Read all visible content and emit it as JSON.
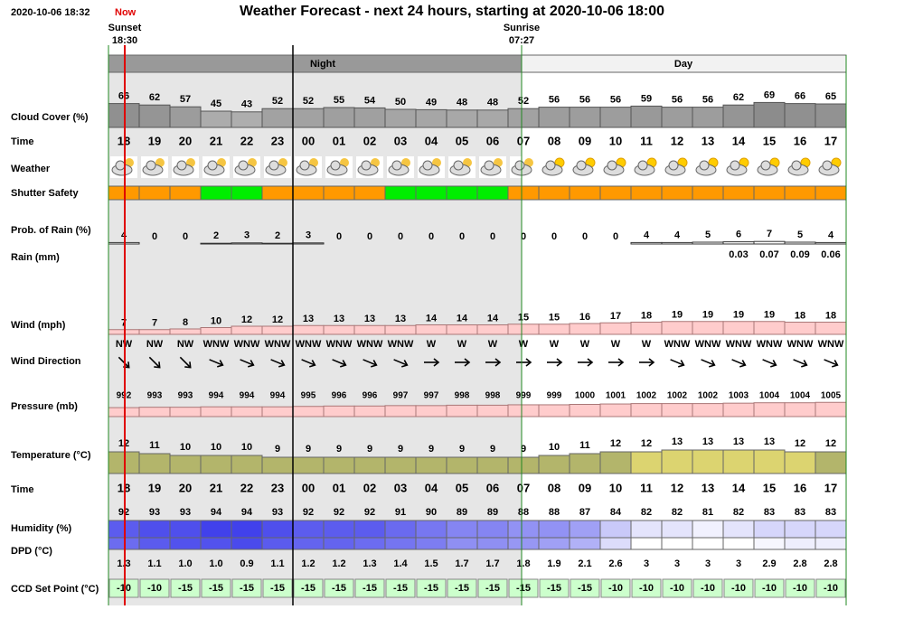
{
  "header": {
    "timestamp": "2020-10-06 18:32",
    "now": "Now",
    "title": "Weather Forecast - next 24 hours, starting at 2020-10-06 18:00",
    "sunset": {
      "label": "Sunset",
      "time": "18:30"
    },
    "sunrise": {
      "label": "Sunrise",
      "time": "07:27"
    }
  },
  "periods": {
    "night": "Night",
    "day": "Day"
  },
  "hours": [
    "18",
    "19",
    "20",
    "21",
    "22",
    "23",
    "00",
    "01",
    "02",
    "03",
    "04",
    "05",
    "06",
    "07",
    "08",
    "09",
    "10",
    "11",
    "12",
    "13",
    "14",
    "15",
    "16",
    "17"
  ],
  "rows": {
    "cloud_cover": {
      "label": "Cloud Cover (%)",
      "values": [
        66,
        62,
        57,
        45,
        43,
        52,
        52,
        55,
        54,
        50,
        49,
        48,
        48,
        52,
        56,
        56,
        56,
        59,
        56,
        56,
        62,
        69,
        66,
        65
      ]
    },
    "time": {
      "label": "Time"
    },
    "weather": {
      "label": "Weather"
    },
    "shutter_safety": {
      "label": "Shutter Safety",
      "colors": [
        "#ff9900",
        "#ff9900",
        "#ff9900",
        "#00ee00",
        "#00ee00",
        "#ff9900",
        "#ff9900",
        "#ff9900",
        "#ff9900",
        "#00ee00",
        "#00ee00",
        "#00ee00",
        "#00ee00",
        "#ff9900",
        "#ff9900",
        "#ff9900",
        "#ff9900",
        "#ff9900",
        "#ff9900",
        "#ff9900",
        "#ff9900",
        "#ff9900",
        "#ff9900",
        "#ff9900"
      ]
    },
    "prob_rain": {
      "label": "Prob. of Rain (%)",
      "values": [
        4,
        0,
        0,
        2,
        3,
        2,
        3,
        0,
        0,
        0,
        0,
        0,
        0,
        0,
        0,
        0,
        0,
        4,
        4,
        5,
        6,
        7,
        5,
        4
      ]
    },
    "rain": {
      "label": "Rain (mm)",
      "values": [
        null,
        null,
        null,
        null,
        null,
        null,
        null,
        null,
        null,
        null,
        null,
        null,
        null,
        null,
        null,
        null,
        null,
        null,
        null,
        null,
        0.03,
        0.07,
        0.09,
        0.06
      ]
    },
    "wind": {
      "label": "Wind (mph)",
      "values": [
        7,
        7,
        8,
        10,
        12,
        12,
        13,
        13,
        13,
        13,
        14,
        14,
        14,
        15,
        15,
        16,
        17,
        18,
        19,
        19,
        19,
        19,
        18,
        18
      ]
    },
    "wind_direction": {
      "label": "Wind Direction",
      "values": [
        "NW",
        "NW",
        "NW",
        "WNW",
        "WNW",
        "WNW",
        "WNW",
        "WNW",
        "WNW",
        "WNW",
        "W",
        "W",
        "W",
        "W",
        "W",
        "W",
        "W",
        "W",
        "WNW",
        "WNW",
        "WNW",
        "WNW",
        "WNW",
        "WNW"
      ]
    },
    "pressure": {
      "label": "Pressure (mb)",
      "values": [
        992,
        993,
        993,
        994,
        994,
        994,
        995,
        996,
        996,
        997,
        997,
        998,
        998,
        999,
        999,
        1000,
        1001,
        1002,
        1002,
        1002,
        1003,
        1004,
        1004,
        1005
      ]
    },
    "temperature": {
      "label": "Temperature (°C)",
      "values": [
        12,
        11,
        10,
        10,
        10,
        9,
        9,
        9,
        9,
        9,
        9,
        9,
        9,
        9,
        10,
        11,
        12,
        12,
        13,
        13,
        13,
        13,
        12,
        12
      ],
      "colors": [
        "#b3b56b",
        "#b3b56b",
        "#b3b56b",
        "#b3b56b",
        "#b3b56b",
        "#b3b56b",
        "#b3b56b",
        "#b3b56b",
        "#b3b56b",
        "#b3b56b",
        "#b3b56b",
        "#b3b56b",
        "#b3b56b",
        "#b3b56b",
        "#b3b56b",
        "#b3b56b",
        "#b3b56b",
        "#dcd470",
        "#dcd470",
        "#dcd470",
        "#dcd470",
        "#dcd470",
        "#dcd470",
        "#b3b56b"
      ]
    },
    "time2": {
      "label": "Time"
    },
    "humidity": {
      "label": "Humidity (%)",
      "values": [
        92,
        93,
        93,
        94,
        94,
        93,
        92,
        92,
        92,
        91,
        90,
        89,
        89,
        88,
        88,
        87,
        84,
        82,
        82,
        81,
        82,
        83,
        83,
        83
      ]
    },
    "dpd": {
      "label": "DPD (°C)",
      "values": [
        1.3,
        1.1,
        1.0,
        1.0,
        0.9,
        1.1,
        1.2,
        1.2,
        1.3,
        1.4,
        1.5,
        1.7,
        1.7,
        1.8,
        1.9,
        2.1,
        2.6,
        3,
        3,
        3,
        3,
        2.9,
        2.8,
        2.8
      ],
      "value_labels": [
        "1.3",
        "1.1",
        "1.0",
        "1.0",
        "0.9",
        "1.1",
        "1.2",
        "1.2",
        "1.3",
        "1.4",
        "1.5",
        "1.7",
        "1.7",
        "1.8",
        "1.9",
        "2.1",
        "2.6",
        "3",
        "3",
        "3",
        "3",
        "2.9",
        "2.8",
        "2.8"
      ]
    },
    "ccd_set_point": {
      "label": "CCD Set Point (°C)",
      "values": [
        -10,
        -10,
        -15,
        -15,
        -15,
        -15,
        -15,
        -15,
        -15,
        -15,
        -15,
        -15,
        -15,
        -15,
        -15,
        -15,
        -10,
        -10,
        -10,
        -10,
        -10,
        -10,
        -10,
        -10
      ]
    }
  }
}
